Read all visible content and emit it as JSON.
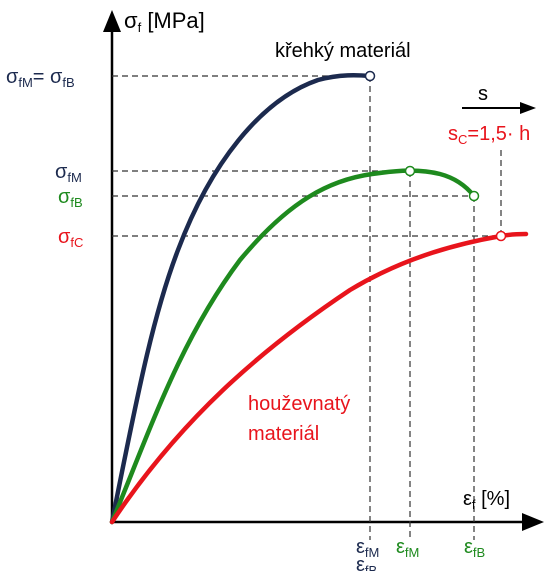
{
  "axes": {
    "y_label": {
      "main": "σ",
      "sub": "f",
      "rest": " [MPa]"
    },
    "x_label": {
      "main": "ε",
      "sub": "f",
      "rest": " [%]"
    }
  },
  "y_ticks": {
    "fM_fB": {
      "a": "σ",
      "a_sub": "fM",
      "eq": "= ",
      "b": "σ",
      "b_sub": "fB"
    },
    "fM": {
      "main": "σ",
      "sub": "fM"
    },
    "fB": {
      "main": "σ",
      "sub": "fB"
    },
    "fC": {
      "main": "σ",
      "sub": "fC"
    }
  },
  "x_ticks": {
    "brittle_fM": {
      "main": "ε",
      "sub": "fM"
    },
    "brittle_fB": {
      "main": "ε",
      "sub": "fB"
    },
    "mid_fM": {
      "main": "ε",
      "sub": "fM"
    },
    "mid_fB": {
      "main": "ε",
      "sub": "fB"
    }
  },
  "annotations": {
    "brittle": "křehký materiál",
    "ductile_line1": "houževnatý",
    "ductile_line2": "materiál",
    "s_label": "s",
    "sc_main": "s",
    "sc_sub": "C",
    "sc_rest": "=1,5· h"
  },
  "colors": {
    "brittle": "#1c2a4e",
    "medium": "#1e8a1e",
    "ductile": "#e8141c",
    "axis": "#000000",
    "guide": "#333333"
  }
}
